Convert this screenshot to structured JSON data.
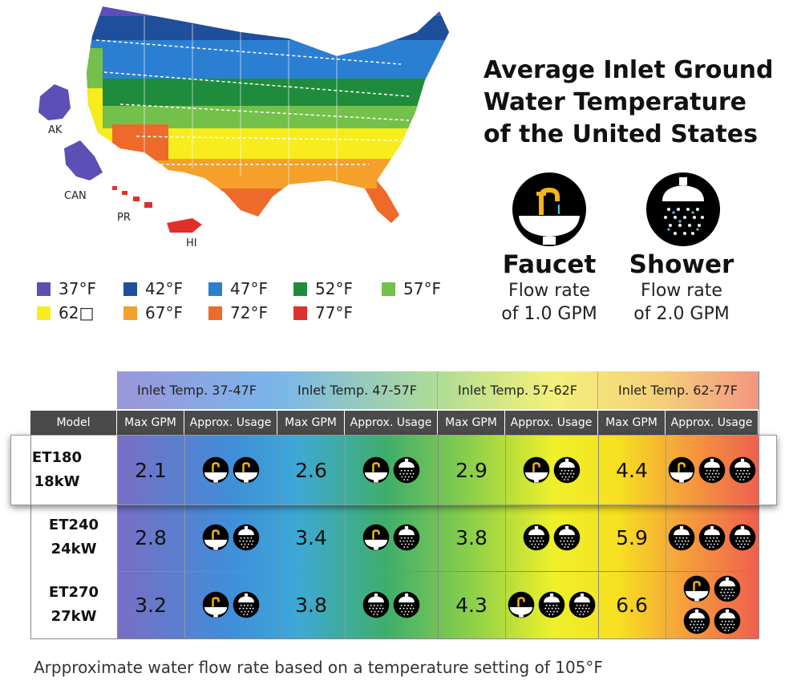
{
  "title": "Average Inlet Ground Water Temperature of the United States",
  "map_labels": {
    "ak": "AK",
    "can": "CAN",
    "pr": "PR",
    "hi": "HI"
  },
  "legend": [
    {
      "label": "37°F",
      "color": "#5c4fb5"
    },
    {
      "label": "42°F",
      "color": "#1f4f9a"
    },
    {
      "label": "47°F",
      "color": "#2b7fd2"
    },
    {
      "label": "52°F",
      "color": "#1e8c3c"
    },
    {
      "label": "57°F",
      "color": "#73c04a"
    },
    {
      "label": "62□",
      "color": "#f7ec1c"
    },
    {
      "label": "67°F",
      "color": "#f5a02a"
    },
    {
      "label": "72°F",
      "color": "#ee6a2a"
    },
    {
      "label": "77°F",
      "color": "#e0302b"
    }
  ],
  "flow": {
    "faucet": {
      "name": "Faucet",
      "desc1": "Flow rate",
      "desc2": "of 1.0 GPM",
      "icon": "faucet-icon"
    },
    "shower": {
      "name": "Shower",
      "desc1": "Flow rate",
      "desc2": "of 2.0 GPM",
      "icon": "shower-icon"
    }
  },
  "table": {
    "ranges": [
      "Inlet Temp. 37-47F",
      "Inlet Temp. 47-57F",
      "Inlet Temp. 57-62F",
      "Inlet Temp. 62-77F"
    ],
    "model_header": "Model",
    "max_gpm_label": "Max GPM",
    "usage_label": "Approx. Usage",
    "rows": [
      {
        "model": "ET180",
        "kw": "18kW",
        "gpm": [
          "2.1",
          "2.6",
          "2.9",
          "4.4"
        ],
        "usage": [
          [
            "faucet",
            "faucet"
          ],
          [
            "faucet",
            "shower"
          ],
          [
            "faucet",
            "shower"
          ],
          [
            "faucet",
            "shower",
            "shower"
          ]
        ]
      },
      {
        "model": "ET240",
        "kw": "24kW",
        "gpm": [
          "2.8",
          "3.4",
          "3.8",
          "5.9"
        ],
        "usage": [
          [
            "faucet",
            "shower"
          ],
          [
            "faucet",
            "shower"
          ],
          [
            "shower",
            "shower"
          ],
          [
            "shower",
            "shower",
            "shower"
          ]
        ]
      },
      {
        "model": "ET270",
        "kw": "27kW",
        "gpm": [
          "3.2",
          "3.8",
          "4.3",
          "6.6"
        ],
        "usage": [
          [
            "faucet",
            "shower"
          ],
          [
            "shower",
            "shower"
          ],
          [
            "faucet",
            "shower",
            "shower"
          ],
          [
            "faucet",
            "shower",
            "shower",
            "shower"
          ]
        ]
      }
    ]
  },
  "footnote": "Arpproximate water flow rate based on a temperature setting of 105°F"
}
